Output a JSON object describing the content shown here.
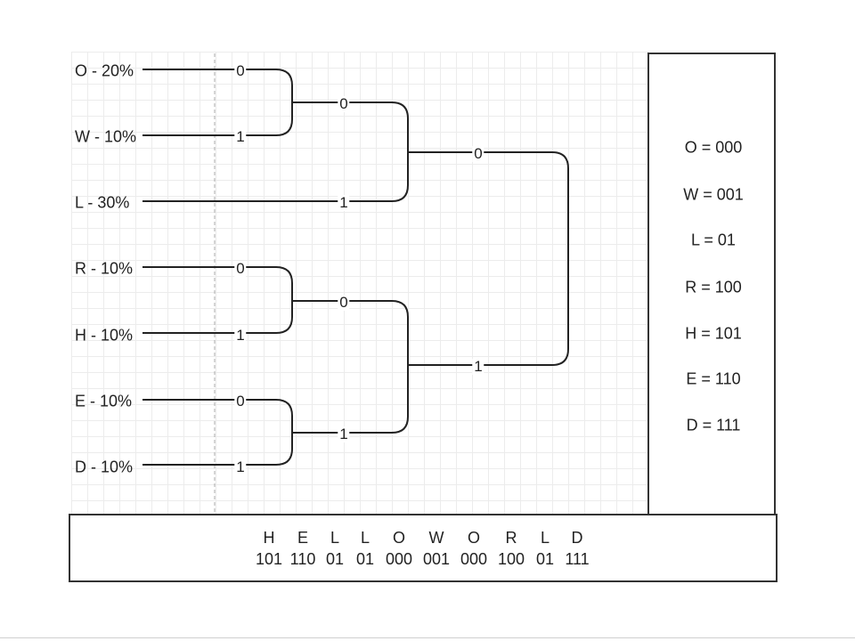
{
  "leaves": [
    {
      "label": "O - 20%"
    },
    {
      "label": "W - 10%"
    },
    {
      "label": "L - 30%"
    },
    {
      "label": "R - 10%"
    },
    {
      "label": "H - 10%"
    },
    {
      "label": "E - 10%"
    },
    {
      "label": "D - 10%"
    }
  ],
  "branches": {
    "o_bit": "0",
    "w_bit": "1",
    "ow_bit": "0",
    "l_bit": "1",
    "owl_bit": "0",
    "r_bit": "0",
    "h_bit": "1",
    "rh_bit": "0",
    "e_bit": "0",
    "d_bit": "1",
    "ed_bit": "1",
    "rhed_bit": "1"
  },
  "codes": [
    {
      "text": "O = 000"
    },
    {
      "text": "W = 001"
    },
    {
      "text": "L = 01"
    },
    {
      "text": "R = 100"
    },
    {
      "text": "H = 101"
    },
    {
      "text": "E = 110"
    },
    {
      "text": "D = 111"
    }
  ],
  "message": {
    "letters": [
      "H",
      "E",
      "L",
      "L",
      "O",
      "W",
      "O",
      "R",
      "L",
      "D"
    ],
    "codes": [
      "101",
      "110",
      "01",
      "01",
      "000",
      "001",
      "000",
      "100",
      "01",
      "111"
    ]
  }
}
